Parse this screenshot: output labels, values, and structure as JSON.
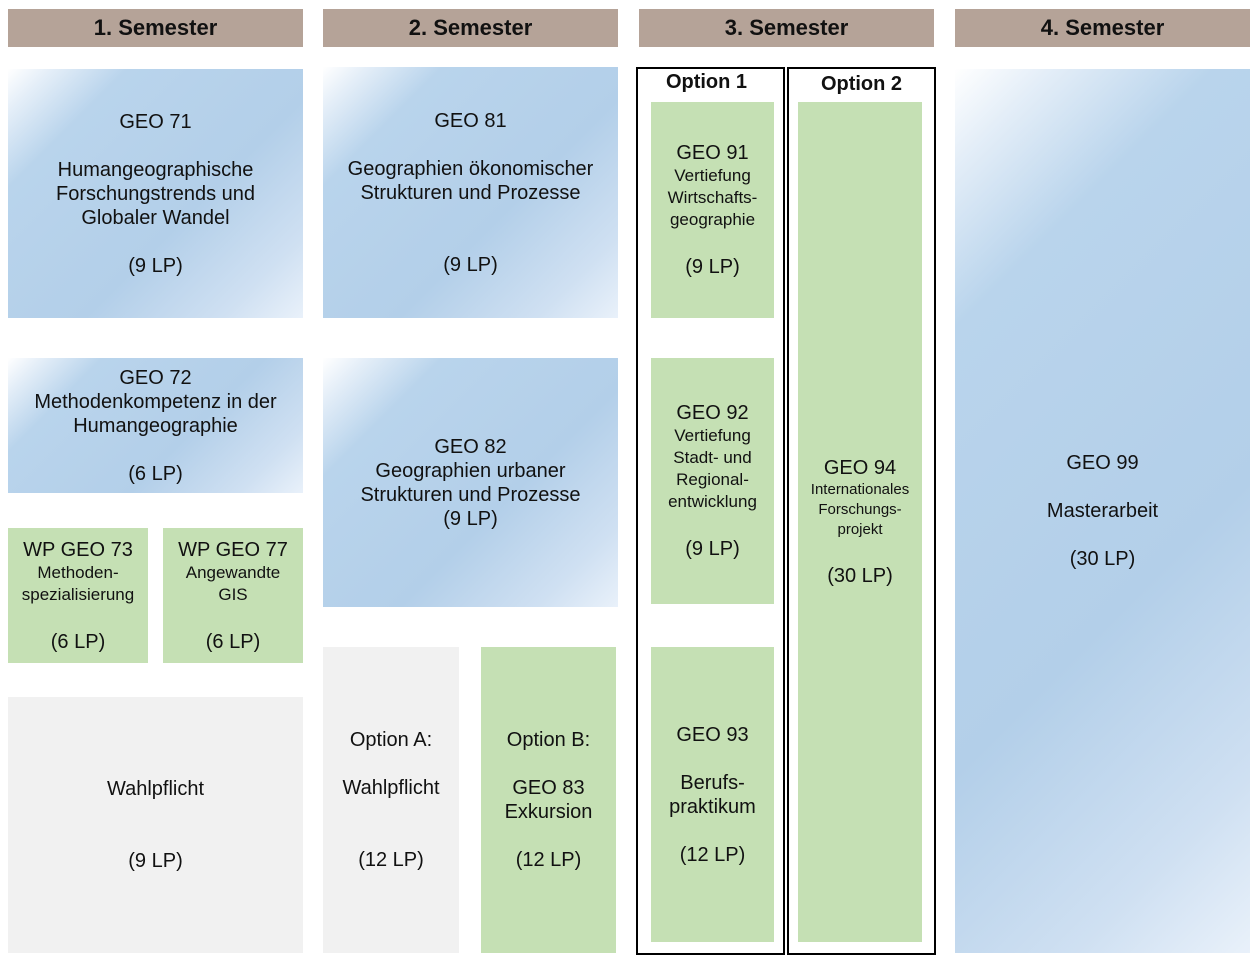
{
  "semesters": [
    {
      "label": "1. Semester"
    },
    {
      "label": "2. Semester"
    },
    {
      "label": "3. Semester"
    },
    {
      "label": "4. Semester"
    }
  ],
  "s1": {
    "geo71": {
      "code": "GEO 71",
      "title_1": "Humangeographische",
      "title_2": "Forschungstrends und",
      "title_3": "Globaler Wandel",
      "lp": "(9 LP)"
    },
    "geo72": {
      "code": "GEO 72",
      "title_1": "Methodenkompetenz in der",
      "title_2": "Humangeographie",
      "lp": "(6 LP)"
    },
    "geo73": {
      "code": "WP GEO 73",
      "title_1": "Methoden-",
      "title_2": "spezialisierung",
      "lp": "(6 LP)"
    },
    "geo77": {
      "code": "WP GEO 77",
      "title_1": "Angewandte",
      "title_2": "GIS",
      "lp": "(6 LP)"
    },
    "wahl": {
      "title": "Wahlpflicht",
      "lp": "(9 LP)"
    }
  },
  "s2": {
    "geo81": {
      "code": "GEO 81",
      "title_1": "Geographien ökonomischer",
      "title_2": "Strukturen und Prozesse",
      "lp": "(9 LP)"
    },
    "geo82": {
      "code": "GEO 82",
      "title_1": "Geographien urbaner",
      "title_2": "Strukturen und Prozesse",
      "lp": "(9 LP)"
    },
    "optA": {
      "label": "Option A:",
      "title": "Wahlpflicht",
      "lp": "(12 LP)"
    },
    "optB": {
      "label": "Option B:",
      "code": "GEO 83",
      "title": "Exkursion",
      "lp": "(12 LP)"
    }
  },
  "s3": {
    "option1_label": "Option 1",
    "option2_label": "Option 2",
    "geo91": {
      "code": "GEO 91",
      "title_1": "Vertiefung",
      "title_2": "Wirtschafts-",
      "title_3": "geographie",
      "lp": "(9 LP)"
    },
    "geo92": {
      "code": "GEO 92",
      "title_1": "Vertiefung",
      "title_2": "Stadt- und",
      "title_3": "Regional-",
      "title_4": "entwicklung",
      "lp": "(9 LP)"
    },
    "geo93": {
      "code": "GEO 93",
      "title_1": "Berufs-",
      "title_2": "praktikum",
      "lp": "(12 LP)"
    },
    "geo94": {
      "code": "GEO 94",
      "title_1": "Internationales",
      "title_2": "Forschungs-",
      "title_3": "projekt",
      "lp": "(30 LP)"
    }
  },
  "s4": {
    "geo99": {
      "code": "GEO 99",
      "title": "Masterarbeit",
      "lp": "(30 LP)"
    }
  }
}
